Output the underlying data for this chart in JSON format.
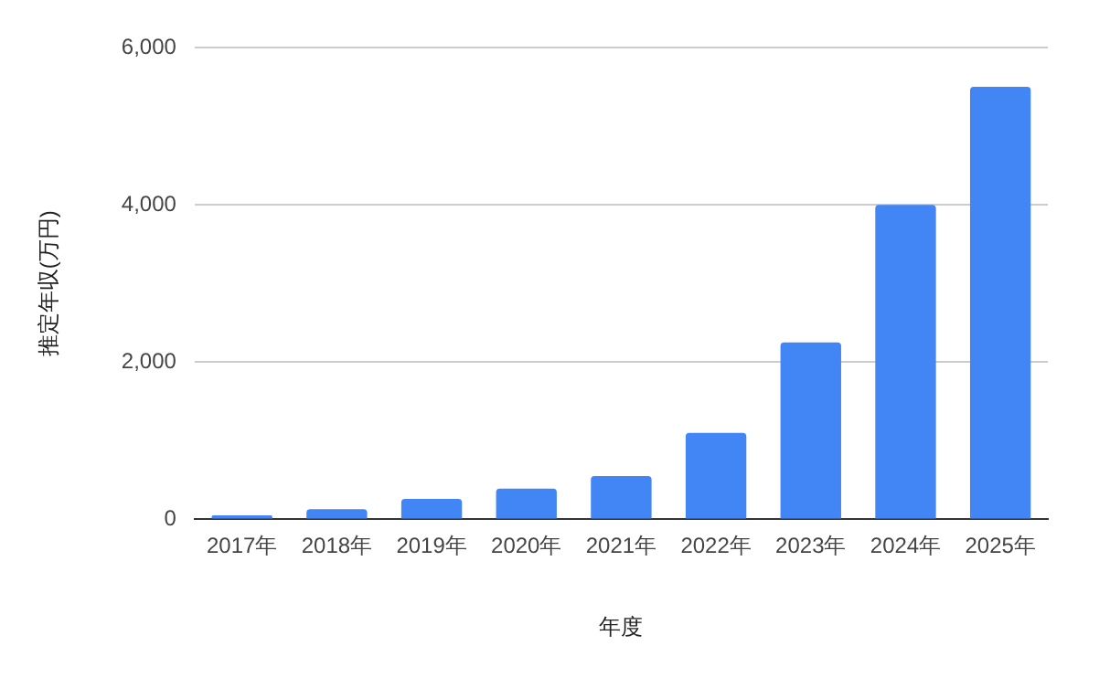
{
  "chart_data": {
    "type": "bar",
    "xlabel": "年度",
    "ylabel": "推定年収(万円)",
    "categories": [
      "2017年",
      "2018年",
      "2019年",
      "2020年",
      "2021年",
      "2022年",
      "2023年",
      "2024年",
      "2025年"
    ],
    "series": [
      {
        "color": "#4285f4",
        "values": [
          50,
          130,
          260,
          390,
          550,
          1100,
          2250,
          4000,
          5500
        ]
      }
    ],
    "ylim": [
      0,
      6000
    ],
    "yticks": [
      {
        "value": 0,
        "label": "0"
      },
      {
        "value": 2000,
        "label": "2,000"
      },
      {
        "value": 4000,
        "label": "4,000"
      },
      {
        "value": 6000,
        "label": "6,000"
      }
    ],
    "grid": "y",
    "legend": false
  }
}
